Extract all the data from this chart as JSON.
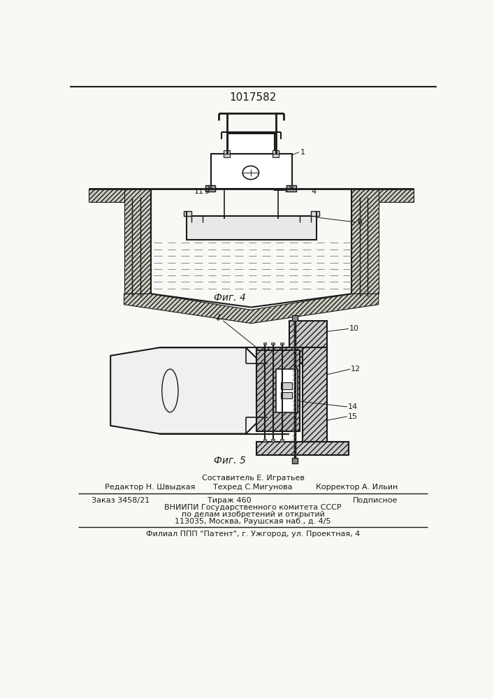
{
  "patent_number": "1017582",
  "fig4_label": "Фиг. 4",
  "fig5_label": "Фиг. 5",
  "bg_color": "#f8f8f5",
  "line_color": "#1a1a1a",
  "hatch_color": "#444444",
  "footer_line1_center_top": "Составитель Е. Игратьев",
  "footer_line1_left": "Редактор Н. Швыдкая",
  "footer_line1_center": "Техред С.Мигунова",
  "footer_line1_right": "Корректор А. Ильин",
  "footer_line2_left": "Заказ 3458/21",
  "footer_line2_center": "Тираж 460",
  "footer_line2_right": "Подписное",
  "footer_line3": "ВНИИПИ Государственного комитета СССР",
  "footer_line4": "по делам изобретений и открытий",
  "footer_line5": "113035, Москва, Раушская наб., д. 4/5",
  "footer_line6": "Филиал ППП \"Патент\", г. Ужгород, ул. Проектная, 4"
}
